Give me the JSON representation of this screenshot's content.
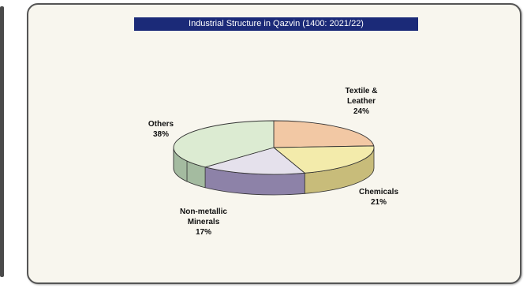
{
  "chart_data": {
    "type": "pie",
    "title": "Industrial Structure in Qazvin (1400: 2021/22)",
    "slices": [
      {
        "label_lines": [
          "Textile &",
          "Leather"
        ],
        "value": 24,
        "value_label": "24%",
        "color": "#f2c8a4",
        "side_color": "#c99a72"
      },
      {
        "label_lines": [
          "Chemicals"
        ],
        "value": 21,
        "value_label": "21%",
        "color": "#f3ebab",
        "side_color": "#c8bc7a"
      },
      {
        "label_lines": [
          "Non-metallic",
          "Minerals"
        ],
        "value": 17,
        "value_label": "17%",
        "color": "#e5e1ec",
        "side_color": "#8d82a8"
      },
      {
        "label_lines": [
          "Others"
        ],
        "value": 38,
        "value_label": "38%",
        "color": "#dcebd2",
        "side_color": "#a4bba0"
      }
    ],
    "legend": "none"
  }
}
